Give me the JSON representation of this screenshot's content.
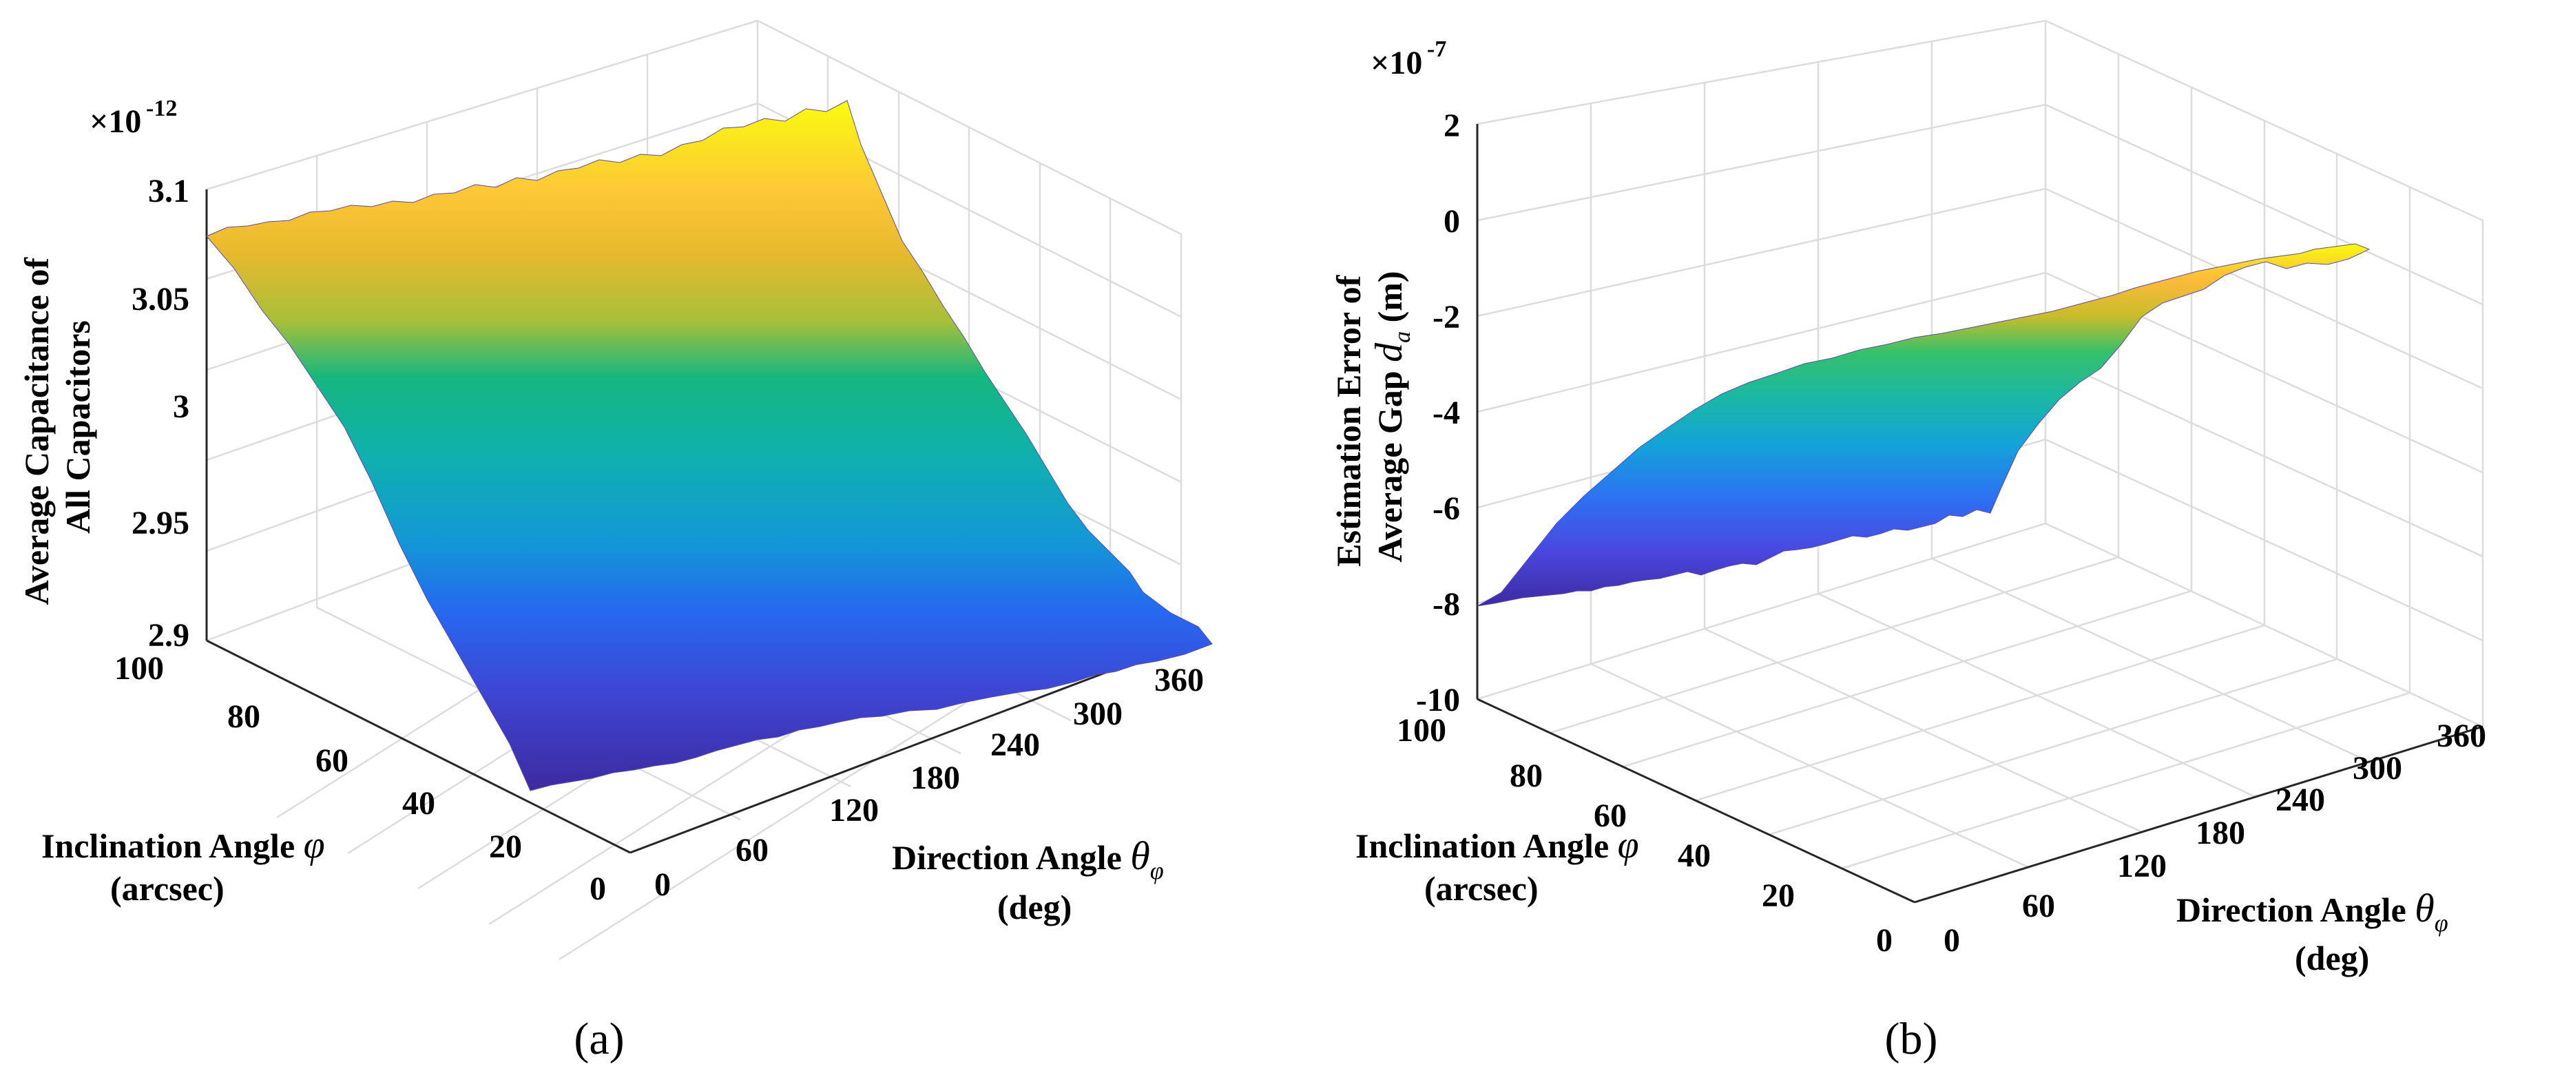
{
  "chart_data": [
    {
      "type": "surface",
      "panel_label": "(a)",
      "zlabel": [
        "Average Capacitance of",
        "All Capacitors"
      ],
      "z_exponent": "×10",
      "z_exponent_power": "-12",
      "zlim": [
        2.9,
        3.1
      ],
      "z_ticks": [
        "3.1",
        "3.05",
        "3",
        "2.95",
        "2.9"
      ],
      "xlabel": "Inclination Angle",
      "xlabel_symbol": "φ",
      "xlabel_unit": "(arcsec)",
      "x_ticks": [
        "100",
        "80",
        "60",
        "40",
        "20",
        "0"
      ],
      "ylabel": "Direction Angle",
      "ylabel_symbol": "θ",
      "ylabel_subscript": "φ",
      "ylabel_unit": "(deg)",
      "y_ticks": [
        "0",
        "60",
        "120",
        "180",
        "240",
        "300",
        "360"
      ],
      "series": [
        {
          "name": "inclination 100 arcsec edge",
          "x": 100,
          "z_approx": 3.08
        },
        {
          "name": "inclination 0 arcsec edge",
          "x": 0,
          "z_approx": 2.9
        }
      ]
    },
    {
      "type": "surface",
      "panel_label": "(b)",
      "zlabel": [
        "Estimation Error of",
        "Average Gap"
      ],
      "zlabel_symbol": "d",
      "zlabel_subscript": "a",
      "zlabel_unit": "(m)",
      "z_exponent": "×10",
      "z_exponent_power": "-7",
      "zlim": [
        -10,
        2
      ],
      "z_ticks": [
        "2",
        "0",
        "-2",
        "-4",
        "-6",
        "-8",
        "-10"
      ],
      "xlabel": "Inclination Angle",
      "xlabel_symbol": "φ",
      "xlabel_unit": "(arcsec)",
      "x_ticks": [
        "100",
        "80",
        "60",
        "40",
        "20",
        "0"
      ],
      "ylabel": "Direction Angle",
      "ylabel_symbol": "θ",
      "ylabel_subscript": "φ",
      "ylabel_unit": "(deg)",
      "y_ticks": [
        "0",
        "60",
        "120",
        "180",
        "240",
        "300",
        "360"
      ],
      "series": [
        {
          "name": "inclination 100 arcsec edge",
          "x": 100,
          "z_approx": -8.1
        },
        {
          "name": "inclination 0 arcsec edge",
          "x": 0,
          "z_approx": 0
        }
      ]
    }
  ]
}
